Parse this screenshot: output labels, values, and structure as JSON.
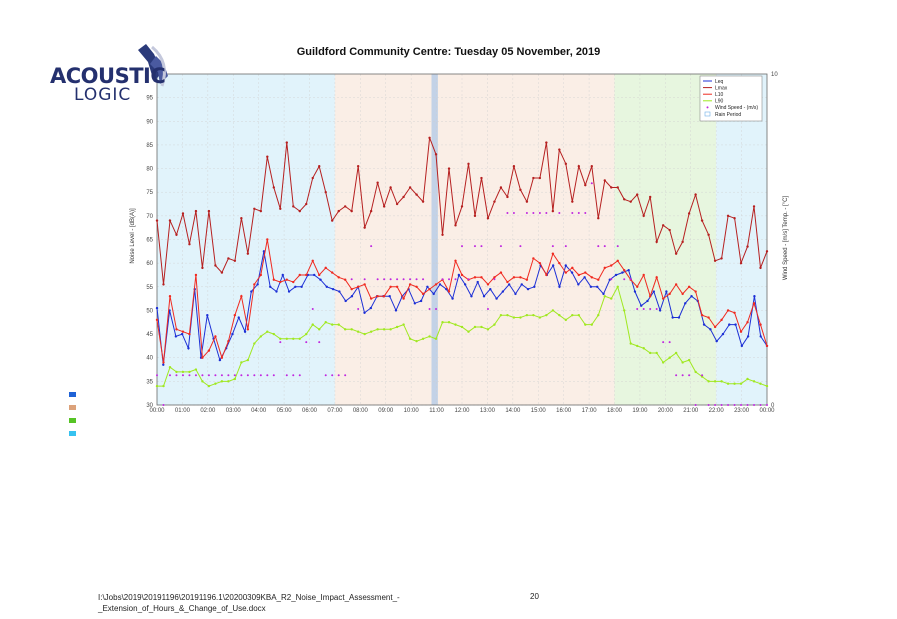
{
  "logo": {
    "name_top": "ACOUSTIC",
    "name_bottom": "LOGIC"
  },
  "footer": {
    "path": "I:\\Jobs\\2019\\20191196\\20191196.1\\20200309KBA_R2_Noise_Impact_Assessment_-_Extension_of_Hours_&_Change_of_Use.docx",
    "page_number": "20"
  },
  "swatches": [
    {
      "color": "#1f62d6"
    },
    {
      "color": "#dca27a"
    },
    {
      "color": "#56c425"
    },
    {
      "color": "#36c2f0"
    }
  ],
  "chart_data": {
    "type": "line",
    "title": "Guildford Community Centre: Tuesday 05 November, 2019",
    "ylabel": "Noise Level - [dB(A)]",
    "y2label": "Wind Speed - [m/s]     Temp. - [°C]",
    "ylim": [
      30,
      100
    ],
    "y2lim": [
      0,
      10
    ],
    "yticks": [
      30,
      35,
      40,
      45,
      50,
      55,
      60,
      65,
      70,
      75,
      80,
      85,
      90,
      95
    ],
    "y2ticks": [
      0,
      10
    ],
    "x_range": [
      0,
      24
    ],
    "xticks": [
      "00:00",
      "01:00",
      "02:00",
      "03:00",
      "04:00",
      "05:00",
      "06:00",
      "07:00",
      "08:00",
      "09:00",
      "10:00",
      "11:00",
      "12:00",
      "13:00",
      "14:00",
      "15:00",
      "16:00",
      "17:00",
      "18:00",
      "19:00",
      "20:00",
      "21:00",
      "22:00",
      "23:00",
      "00:00"
    ],
    "grid": true,
    "legend_position": "top-right",
    "periods": [
      {
        "start": 0,
        "end": 7,
        "color": "#e1f3fb"
      },
      {
        "start": 7,
        "end": 18,
        "color": "#faeee6"
      },
      {
        "start": 18,
        "end": 22,
        "color": "#e7f6df"
      },
      {
        "start": 22,
        "end": 24,
        "color": "#e1f3fb"
      }
    ],
    "rain_periods": [
      {
        "start": 10.8,
        "end": 11.05
      }
    ],
    "series": [
      {
        "name": "Leq",
        "color": "#1c2fd6",
        "axis": "left",
        "values": [
          50.5,
          38.5,
          50,
          44.5,
          45,
          42,
          54.5,
          40,
          49,
          44,
          39.5,
          42,
          45,
          48.5,
          45.5,
          54,
          55.5,
          62.5,
          55,
          54,
          57.5,
          54,
          55,
          55,
          57.5,
          57.5,
          56.5,
          55,
          54.5,
          54,
          52,
          53,
          55,
          49.5,
          50.5,
          53,
          53,
          53,
          50,
          53,
          54.5,
          51.5,
          52,
          55,
          53.5,
          55.5,
          54.5,
          52.5,
          57.5,
          55.5,
          53,
          56,
          53,
          54.5,
          52.5,
          54,
          55.5,
          53.5,
          55.5,
          54.5,
          55,
          59.5,
          57.5,
          59.5,
          55,
          59.5,
          58,
          55.5,
          57,
          55,
          55,
          53.5,
          56.5,
          57.5,
          58,
          58.5,
          54,
          51,
          52,
          54,
          50,
          54,
          48.5,
          48.5,
          51.5,
          53,
          52,
          47,
          46,
          43.5,
          45,
          47,
          47,
          42.5,
          44.5,
          53,
          44.5,
          42.5
        ]
      },
      {
        "name": "Lmax",
        "color": "#b62020",
        "axis": "left",
        "values": [
          69,
          55.5,
          69,
          66,
          70.5,
          64,
          71,
          59,
          71,
          59.5,
          58,
          61,
          60.5,
          69.5,
          62,
          71.5,
          71,
          82.5,
          76,
          71.5,
          85.5,
          72,
          71,
          72.5,
          78,
          80.5,
          75,
          69,
          71,
          72,
          71,
          80.5,
          67.5,
          71,
          77,
          72,
          76,
          72.5,
          74,
          76,
          74.5,
          73,
          86.5,
          83,
          66,
          80,
          68,
          72,
          81,
          70,
          78,
          69.5,
          73,
          76,
          74,
          80.5,
          75.5,
          73,
          78,
          78,
          85.5,
          71,
          84,
          81,
          73,
          80.5,
          76.5,
          80.5,
          69.5,
          77.5,
          76,
          76,
          73.5,
          73,
          74.5,
          70,
          74,
          64.5,
          68,
          67,
          62,
          64.5,
          70.5,
          74.5,
          69,
          66,
          60.5,
          61,
          70,
          69.5,
          60,
          63.5,
          72,
          59,
          62.5
        ]
      },
      {
        "name": "L10",
        "color": "#f02a20",
        "axis": "left",
        "values": [
          48,
          39,
          53,
          46,
          45.5,
          45,
          57.5,
          40,
          41.5,
          44.5,
          40,
          43.5,
          49,
          53,
          46,
          55.5,
          57.5,
          65,
          56.5,
          56,
          56.5,
          56,
          57.5,
          57.5,
          60.5,
          57.5,
          59,
          58,
          57,
          56.5,
          54.5,
          55,
          55.5,
          52.5,
          53,
          53,
          55,
          55,
          52.5,
          55.5,
          55,
          53.5,
          54.5,
          55.5,
          56.5,
          54,
          60.5,
          57.5,
          56.5,
          57,
          57,
          55.5,
          57,
          58,
          56,
          57,
          57,
          56.5,
          61,
          60,
          57.5,
          62,
          60,
          58,
          59,
          57.5,
          58,
          57,
          56.5,
          59,
          59.5,
          60.5,
          58.5,
          56.5,
          55,
          57.5,
          53,
          57,
          52.5,
          53.5,
          55.5,
          53.5,
          55,
          54,
          49,
          48.5,
          46.5,
          48,
          50,
          49.5,
          45.5,
          47.5,
          51.5,
          47,
          42.5
        ]
      },
      {
        "name": "L90",
        "color": "#a0e820",
        "axis": "left",
        "values": [
          34,
          34,
          38,
          37,
          37,
          37,
          37.5,
          35,
          34,
          34.5,
          35,
          35,
          35.5,
          39,
          39.5,
          43,
          44.5,
          45.5,
          45,
          44,
          44,
          44,
          44,
          45,
          47,
          46,
          47.5,
          47,
          47,
          46,
          46,
          45.5,
          45,
          45.5,
          46,
          46,
          46,
          46.5,
          47,
          44,
          43.5,
          44,
          44.5,
          44,
          47.5,
          47.5,
          47,
          46.5,
          45.5,
          46.5,
          46.5,
          46,
          47,
          49,
          49,
          48.5,
          48.5,
          49,
          49,
          48.5,
          49,
          50,
          49,
          48,
          49,
          49,
          47,
          47,
          49,
          53,
          52.5,
          55,
          50,
          43,
          42.5,
          42,
          41,
          41,
          39,
          40,
          41,
          39,
          39.5,
          37,
          36,
          35,
          35,
          35,
          34.5,
          34.5,
          34.5,
          35.5,
          35,
          34.5,
          34
        ]
      },
      {
        "name": "Wind Speed - (m/s)",
        "color": "#c026e0",
        "axis": "right",
        "values": [
          0.9,
          0,
          0.9,
          0.9,
          0.9,
          0.9,
          0.9,
          0.9,
          0.9,
          0.9,
          0.9,
          0.9,
          0.9,
          0.9,
          0.9,
          0.9,
          0.9,
          0.9,
          0.9,
          1.9,
          0.9,
          0.9,
          0.9,
          1.9,
          2.9,
          1.9,
          0.9,
          0.9,
          0.9,
          0.9,
          3.8,
          2.9,
          3.8,
          4.8,
          3.8,
          3.8,
          3.8,
          3.8,
          3.8,
          3.8,
          3.8,
          3.8,
          2.9,
          2.9,
          3.8,
          3.8,
          3.8,
          4.8,
          3.8,
          4.8,
          4.8,
          2.9,
          3.8,
          4.8,
          5.8,
          5.8,
          4.8,
          5.8,
          5.8,
          5.8,
          5.8,
          4.8,
          5.8,
          4.8,
          5.8,
          5.8,
          5.8,
          6.7,
          4.8,
          4.8,
          3.8,
          4.8,
          3.8,
          3.8,
          2.9,
          2.9,
          2.9,
          2.9,
          1.9,
          1.9,
          0.9,
          0.9,
          0.9,
          0,
          0.9,
          0,
          0,
          0,
          0,
          0,
          0,
          0,
          0,
          0,
          0
        ]
      },
      {
        "name": "Rain Period",
        "color": "#6fb0e8",
        "axis": "left",
        "values": []
      }
    ]
  }
}
